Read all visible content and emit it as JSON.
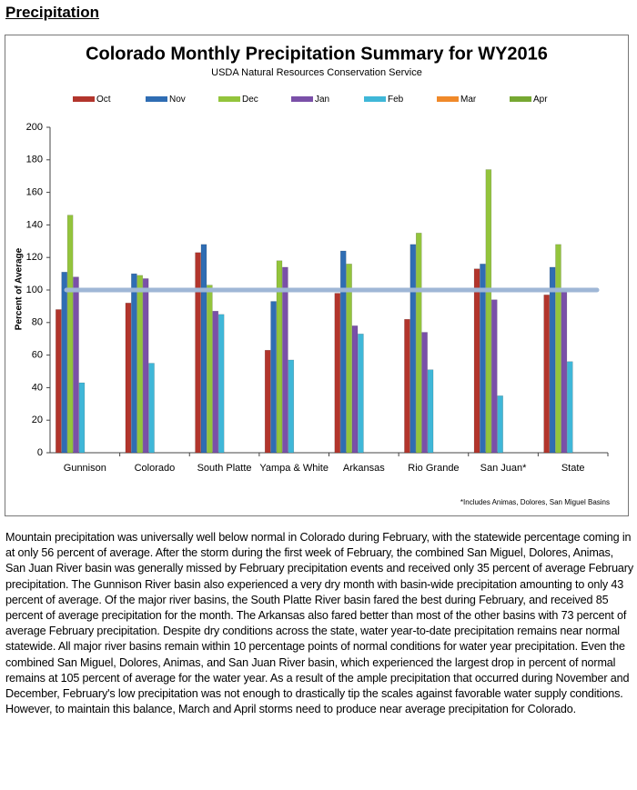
{
  "heading": "Precipitation",
  "chart_data": {
    "type": "bar",
    "title": "Colorado Monthly Precipitation Summary for WY2016",
    "subtitle": "USDA Natural Resources Conservation Service",
    "y_label": "Percent of Average",
    "footnote": "*Includes Animas, Dolores, San Miguel Basins",
    "categories": [
      "Gunnison",
      "Colorado",
      "South Platte",
      "Yampa & White",
      "Arkansas",
      "Rio Grande",
      "San Juan*",
      "State"
    ],
    "series": [
      {
        "name": "Oct",
        "color": "#b2352c",
        "values": [
          88,
          92,
          123,
          63,
          98,
          82,
          113,
          97
        ]
      },
      {
        "name": "Nov",
        "color": "#2f6db3",
        "values": [
          111,
          110,
          128,
          93,
          124,
          128,
          116,
          114
        ]
      },
      {
        "name": "Dec",
        "color": "#93c43c",
        "values": [
          146,
          109,
          103,
          118,
          116,
          135,
          174,
          128
        ]
      },
      {
        "name": "Jan",
        "color": "#7a50a8",
        "values": [
          108,
          107,
          87,
          114,
          78,
          74,
          94,
          99
        ]
      },
      {
        "name": "Feb",
        "color": "#3fb7d8",
        "values": [
          43,
          55,
          85,
          57,
          73,
          51,
          35,
          56
        ]
      },
      {
        "name": "Mar",
        "color": "#f0892a",
        "values": [
          null,
          null,
          null,
          null,
          null,
          null,
          null,
          null
        ]
      },
      {
        "name": "Apr",
        "color": "#76a832",
        "values": [
          null,
          null,
          null,
          null,
          null,
          null,
          null,
          null
        ]
      }
    ],
    "reference_line": 100,
    "reference_color": "#9fb7d6",
    "ylim": [
      0,
      200
    ],
    "yticks": [
      0,
      20,
      40,
      60,
      80,
      100,
      120,
      140,
      160,
      180,
      200
    ],
    "grid": false
  },
  "paragraph": "Mountain precipitation was universally well below normal in Colorado during February, with the statewide percentage coming in at only 56 percent of average. After the storm during the first week of February, the combined San Miguel, Dolores, Animas, San Juan River basin was generally missed by February precipitation events and received only 35 percent of average February precipitation. The Gunnison River basin also experienced a very dry month with basin-wide precipitation amounting to only 43 percent of average. Of the major river basins, the South Platte River basin fared the best during February, and received 85 percent of average precipitation for the month. The Arkansas also fared better than most of the other basins with 73 percent of average February precipitation. Despite dry conditions across the state, water year-to-date precipitation remains near normal statewide. All major river basins remain within 10 percentage points of normal conditions for water year precipitation. Even the combined San Miguel, Dolores, Animas, and San Juan River basin, which experienced the largest drop in percent of normal remains at 105 percent of average for the water year. As a result of the ample precipitation that occurred during November and December, February's low precipitation was not enough to drastically tip the scales against favorable water supply conditions. However, to maintain this balance, March and April storms need to produce near average precipitation for Colorado."
}
